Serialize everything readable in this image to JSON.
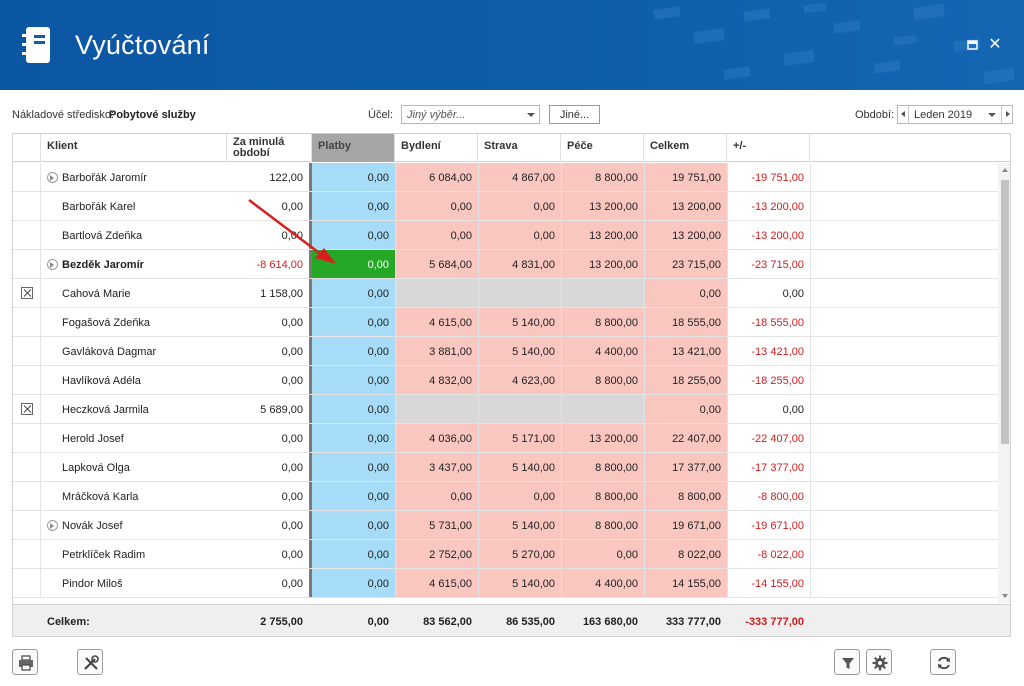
{
  "window": {
    "title": "Vyúčtování"
  },
  "filters": {
    "cost_center_label": "Nákladové středisko:",
    "cost_center_value": "Pobytové služby",
    "purpose_label": "Účel:",
    "purpose_value": "Jiný výběr...",
    "other_button": "Jiné...",
    "period_label": "Období:",
    "period_value": "Leden 2019"
  },
  "columns": {
    "client": "Klient",
    "prev_line1": "Za minulá",
    "prev_line2": "období",
    "payments": "Platby",
    "housing": "Bydlení",
    "food": "Strava",
    "care": "Péče",
    "total": "Celkem",
    "diff": "+/-"
  },
  "rows": [
    {
      "name": "Barbořák Jaromír",
      "expand": true,
      "bold": false,
      "x": false,
      "prev": "122,00",
      "plat": "0,00",
      "byd": "6 084,00",
      "str": "4 867,00",
      "pec": "8 800,00",
      "cel": "19 751,00",
      "pm": "-19 751,00"
    },
    {
      "name": "Barbořák Karel",
      "expand": false,
      "bold": false,
      "x": false,
      "prev": "0,00",
      "plat": "0,00",
      "byd": "0,00",
      "str": "0,00",
      "pec": "13 200,00",
      "cel": "13 200,00",
      "pm": "-13 200,00"
    },
    {
      "name": "Bartlová Zdeňka",
      "expand": false,
      "bold": false,
      "x": false,
      "prev": "0,00",
      "plat": "0,00",
      "byd": "0,00",
      "str": "0,00",
      "pec": "13 200,00",
      "cel": "13 200,00",
      "pm": "-13 200,00"
    },
    {
      "name": "Bezděk Jaromír",
      "expand": true,
      "bold": true,
      "x": false,
      "prev": "-8 614,00",
      "prevRed": true,
      "plat": "0,00",
      "platGreen": true,
      "byd": "5 684,00",
      "str": "4 831,00",
      "pec": "13 200,00",
      "cel": "23 715,00",
      "pm": "-23 715,00"
    },
    {
      "name": "Cahová Marie",
      "expand": false,
      "bold": false,
      "x": true,
      "prev": "1 158,00",
      "plat": "0,00",
      "byd": "",
      "str": "",
      "pec": "",
      "cel": "0,00",
      "pm": "0,00",
      "empty": true
    },
    {
      "name": "Fogašová Zdeňka",
      "expand": false,
      "bold": false,
      "x": false,
      "prev": "0,00",
      "plat": "0,00",
      "byd": "4 615,00",
      "str": "5 140,00",
      "pec": "8 800,00",
      "cel": "18 555,00",
      "pm": "-18 555,00"
    },
    {
      "name": "Gavláková Dagmar",
      "expand": false,
      "bold": false,
      "x": false,
      "prev": "0,00",
      "plat": "0,00",
      "byd": "3 881,00",
      "str": "5 140,00",
      "pec": "4 400,00",
      "cel": "13 421,00",
      "pm": "-13 421,00"
    },
    {
      "name": "Havlíková Adéla",
      "expand": false,
      "bold": false,
      "x": false,
      "prev": "0,00",
      "plat": "0,00",
      "byd": "4 832,00",
      "str": "4 623,00",
      "pec": "8 800,00",
      "cel": "18 255,00",
      "pm": "-18 255,00"
    },
    {
      "name": "Heczková Jarmila",
      "expand": false,
      "bold": false,
      "x": true,
      "prev": "5 689,00",
      "plat": "0,00",
      "byd": "",
      "str": "",
      "pec": "",
      "cel": "0,00",
      "pm": "0,00",
      "empty": true
    },
    {
      "name": "Herold Josef",
      "expand": false,
      "bold": false,
      "x": false,
      "prev": "0,00",
      "plat": "0,00",
      "byd": "4 036,00",
      "str": "5 171,00",
      "pec": "13 200,00",
      "cel": "22 407,00",
      "pm": "-22 407,00"
    },
    {
      "name": "Lapková Olga",
      "expand": false,
      "bold": false,
      "x": false,
      "prev": "0,00",
      "plat": "0,00",
      "byd": "3 437,00",
      "str": "5 140,00",
      "pec": "8 800,00",
      "cel": "17 377,00",
      "pm": "-17 377,00"
    },
    {
      "name": "Mráčková Karla",
      "expand": false,
      "bold": false,
      "x": false,
      "prev": "0,00",
      "plat": "0,00",
      "byd": "0,00",
      "str": "0,00",
      "pec": "8 800,00",
      "cel": "8 800,00",
      "pm": "-8 800,00"
    },
    {
      "name": "Novák Josef",
      "expand": true,
      "bold": false,
      "x": false,
      "prev": "0,00",
      "plat": "0,00",
      "byd": "5 731,00",
      "str": "5 140,00",
      "pec": "8 800,00",
      "cel": "19 671,00",
      "pm": "-19 671,00"
    },
    {
      "name": "Petrklíček Radim",
      "expand": false,
      "bold": false,
      "x": false,
      "prev": "0,00",
      "plat": "0,00",
      "byd": "2 752,00",
      "str": "5 270,00",
      "pec": "0,00",
      "cel": "8 022,00",
      "pm": "-8 022,00"
    },
    {
      "name": "Pindor Miloš",
      "expand": false,
      "bold": false,
      "x": false,
      "prev": "0,00",
      "plat": "0,00",
      "byd": "4 615,00",
      "str": "5 140,00",
      "pec": "4 400,00",
      "cel": "14 155,00",
      "pm": "-14 155,00"
    }
  ],
  "totals": {
    "label": "Celkem:",
    "prev": "2 755,00",
    "plat": "0,00",
    "byd": "83 562,00",
    "str": "86 535,00",
    "pec": "163 680,00",
    "cel": "333 777,00",
    "pm": "-333 777,00"
  },
  "toolbar": {
    "left": [
      "print-icon",
      "tools-icon"
    ],
    "right": [
      "filter-icon",
      "gear-icon",
      "refresh-icon"
    ]
  },
  "colors": {
    "title_bg": "#0f5da9",
    "payments_bg": "#a6dcf7",
    "charges_bg": "#f9c6c0",
    "highlight": "#25a825",
    "negative": "#d11d1d",
    "arrow": "#d62020"
  }
}
